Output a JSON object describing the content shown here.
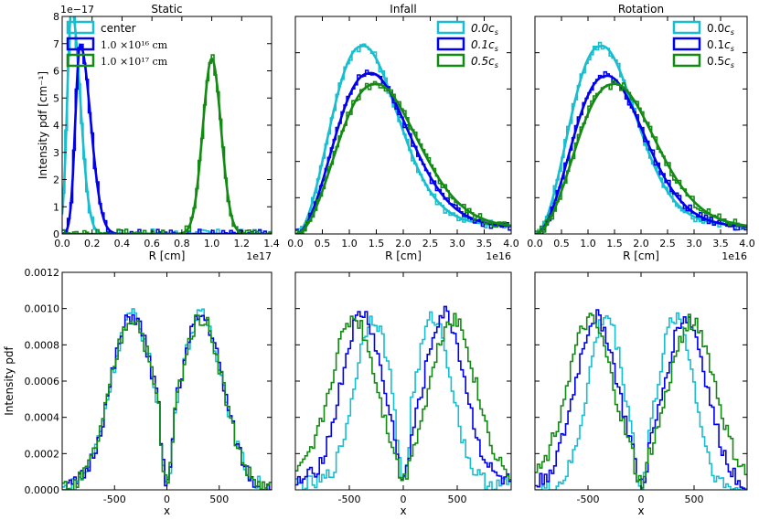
{
  "colors": {
    "cyan": "#17becf",
    "blue": "#0000ee",
    "green": "#138a13"
  },
  "chart_data": [
    {
      "id": "static-radial",
      "type": "line",
      "title": "Static",
      "xlabel": "R [cm]",
      "ylabel": "Intensity pdf [cm⁻¹]",
      "xlim": [
        0,
        1.4
      ],
      "ylim": [
        0,
        8
      ],
      "x_scale_label": "1e17",
      "y_scale_label": "1e−17",
      "xticks": [
        "0.0",
        "0.2",
        "0.4",
        "0.6",
        "0.8",
        "1.0",
        "1.2",
        "1.4"
      ],
      "yticks": [
        "0",
        "1",
        "2",
        "3",
        "4",
        "5",
        "6",
        "7",
        "8"
      ],
      "legend_position": "upper-left",
      "series": [
        {
          "name": "center",
          "color": "cyan",
          "kind": "gauss",
          "label_style": "normal",
          "peak": 8.3,
          "mu": 0.062,
          "sL": 0.028,
          "sR": 0.058
        },
        {
          "name": "1.0 ×10¹⁶ cm",
          "color": "blue",
          "kind": "gauss",
          "label_style": "serif",
          "peak": 6.95,
          "mu": 0.12,
          "sL": 0.032,
          "sR": 0.07
        },
        {
          "name": "1.0 ×10¹⁷ cm",
          "color": "green",
          "kind": "gauss",
          "label_style": "serif",
          "peak": 6.45,
          "mu": 1.0,
          "sL": 0.06,
          "sR": 0.062
        }
      ]
    },
    {
      "id": "infall-radial",
      "type": "line",
      "title": "Infall",
      "xlabel": "R [cm]",
      "ylabel": "",
      "xlim": [
        0,
        4.0
      ],
      "ylim": [
        0,
        8
      ],
      "x_scale_label": "1e16",
      "xticks": [
        "0.0",
        "0.5",
        "1.0",
        "1.5",
        "2.0",
        "2.5",
        "3.0",
        "3.5",
        "4.0"
      ],
      "yticks": [],
      "legend_position": "upper-right",
      "series": [
        {
          "name": "0.0",
          "suffix": "c",
          "sub": "s",
          "color": "cyan",
          "kind": "rayleigh",
          "label_style": "italic",
          "peak": 6.9,
          "mode": 1.22
        },
        {
          "name": "0.1",
          "suffix": "c",
          "sub": "s",
          "color": "blue",
          "kind": "rayleigh",
          "label_style": "italic",
          "peak": 5.9,
          "mode": 1.35
        },
        {
          "name": "0.5",
          "suffix": "c",
          "sub": "s",
          "color": "green",
          "kind": "rayleigh",
          "label_style": "italic",
          "peak": 5.5,
          "mode": 1.45
        }
      ]
    },
    {
      "id": "rotation-radial",
      "type": "line",
      "title": "Rotation",
      "xlabel": "R [cm]",
      "ylabel": "",
      "xlim": [
        0,
        4.0
      ],
      "ylim": [
        0,
        8
      ],
      "x_scale_label": "1e16",
      "xticks": [
        "0.0",
        "0.5",
        "1.0",
        "1.5",
        "2.0",
        "2.5",
        "3.0",
        "3.5",
        "4.0"
      ],
      "yticks": [],
      "legend_position": "upper-right",
      "series": [
        {
          "name": "0.0",
          "suffix": "c",
          "sub": "s",
          "color": "cyan",
          "kind": "rayleigh",
          "label_style": "normal",
          "peak": 6.9,
          "mode": 1.22
        },
        {
          "name": "0.1",
          "suffix": "c",
          "sub": "s",
          "color": "blue",
          "kind": "rayleigh",
          "label_style": "normal",
          "peak": 5.8,
          "mode": 1.32
        },
        {
          "name": "0.5",
          "suffix": "c",
          "sub": "s",
          "color": "green",
          "kind": "rayleigh",
          "label_style": "normal",
          "peak": 5.5,
          "mode": 1.45
        }
      ]
    },
    {
      "id": "static-profile",
      "type": "line",
      "title": "",
      "xlabel": "x",
      "ylabel": "Intensity pdf",
      "xlim": [
        -1000,
        1000
      ],
      "ylim": [
        0,
        0.0012
      ],
      "xticks": [
        "-500",
        "0",
        "500"
      ],
      "xtick_values": [
        -500,
        0,
        500
      ],
      "yticks": [
        "0.0000",
        "0.0002",
        "0.0004",
        "0.0006",
        "0.0008",
        "0.0010",
        "0.0012"
      ],
      "series": [
        {
          "name": "center",
          "color": "cyan",
          "peak": 0.00096,
          "mu": 330,
          "sd": 210,
          "base": 0.0
        },
        {
          "name": "1.0e16",
          "color": "blue",
          "peak": 0.00096,
          "mu": 330,
          "sd": 210,
          "base": 0.0
        },
        {
          "name": "1.0e17",
          "color": "green",
          "peak": 0.00095,
          "mu": 330,
          "sd": 210,
          "base": 0.0
        }
      ]
    },
    {
      "id": "infall-profile",
      "type": "line",
      "title": "",
      "xlabel": "x",
      "ylabel": "",
      "xlim": [
        -1000,
        1000
      ],
      "ylim": [
        0,
        0.0012
      ],
      "xticks": [
        "-500",
        "0",
        "500"
      ],
      "xtick_values": [
        -500,
        0,
        500
      ],
      "yticks": [],
      "series": [
        {
          "name": "0.0cs",
          "color": "cyan",
          "peak": 0.00092,
          "mu": 280,
          "sd": 170,
          "base": 3e-05
        },
        {
          "name": "0.1cs",
          "color": "blue",
          "peak": 0.00093,
          "mu": 380,
          "sd": 190,
          "base": 4e-05
        },
        {
          "name": "0.5cs",
          "color": "green",
          "peak": 0.0009,
          "mu": 460,
          "sd": 210,
          "base": 5e-05
        }
      ]
    },
    {
      "id": "rotation-profile",
      "type": "line",
      "title": "",
      "xlabel": "x",
      "ylabel": "",
      "xlim": [
        -1000,
        1000
      ],
      "ylim": [
        0,
        0.0012
      ],
      "xticks": [
        "-500",
        "0",
        "500"
      ],
      "xtick_values": [
        -500,
        0,
        500
      ],
      "yticks": [],
      "series": [
        {
          "name": "0.0cs",
          "color": "cyan",
          "peak": 0.00096,
          "mu": 330,
          "sd": 170,
          "base": 0.0
        },
        {
          "name": "0.1cs",
          "color": "blue",
          "peak": 0.00093,
          "mu": 420,
          "sd": 200,
          "base": 2e-05
        },
        {
          "name": "0.5cs",
          "color": "green",
          "peak": 0.0009,
          "mu": 480,
          "sd": 220,
          "base": 3e-05
        }
      ]
    }
  ]
}
